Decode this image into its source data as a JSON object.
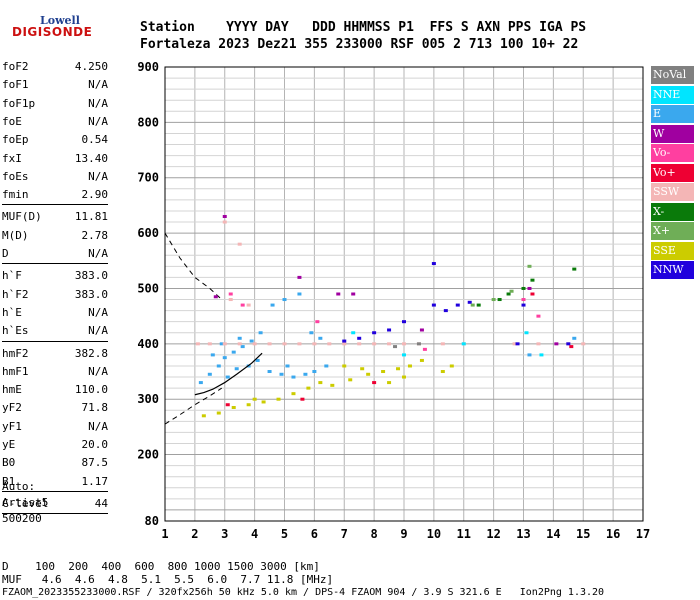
{
  "logo": {
    "brand": "Lowell",
    "product": "DIGISONDE"
  },
  "header": {
    "line1": "Station    YYYY DAY   DDD HHMMSS P1  FFS S AXN PPS IGA PS",
    "line2": "Fortaleza 2023 Dez21 355 233000 RSF 005 2 713 100 10+ 22"
  },
  "params": [
    {
      "name": "foF2",
      "value": "4.250"
    },
    {
      "name": "foF1",
      "value": "N/A"
    },
    {
      "name": "foF1p",
      "value": "N/A"
    },
    {
      "name": "foE",
      "value": "N/A"
    },
    {
      "name": "foEp",
      "value": "0.54"
    },
    {
      "name": "fxI",
      "value": "13.40"
    },
    {
      "name": "foEs",
      "value": "N/A"
    },
    {
      "name": "fmin",
      "value": "2.90"
    },
    {
      "name": "MUF(D)",
      "value": "11.81"
    },
    {
      "name": "M(D)",
      "value": "2.78"
    },
    {
      "name": "D",
      "value": "N/A"
    },
    {
      "name": "h`F",
      "value": "383.0"
    },
    {
      "name": "h`F2",
      "value": "383.0"
    },
    {
      "name": "h`E",
      "value": "N/A"
    },
    {
      "name": "h`Es",
      "value": "N/A"
    },
    {
      "name": "hmF2",
      "value": "382.8"
    },
    {
      "name": "hmF1",
      "value": "N/A"
    },
    {
      "name": "hmE",
      "value": "110.0"
    },
    {
      "name": "yF2",
      "value": "71.8"
    },
    {
      "name": "yF1",
      "value": "N/A"
    },
    {
      "name": "yE",
      "value": "20.0"
    },
    {
      "name": "B0",
      "value": "87.5"
    },
    {
      "name": "B1",
      "value": "1.17"
    },
    {
      "name": "C-level",
      "value": "44"
    }
  ],
  "autoscaling": {
    "line1": "Auto:",
    "line2": "Artist5",
    "line3": "500200"
  },
  "legend": [
    {
      "label": "NoVal",
      "color": "#808080"
    },
    {
      "label": "NNE",
      "color": "#00e5ff"
    },
    {
      "label": "E",
      "color": "#3aa8ee"
    },
    {
      "label": "W",
      "color": "#a000a0"
    },
    {
      "label": "Vo-",
      "color": "#ff3fa0"
    },
    {
      "label": "Vo+",
      "color": "#ee0033"
    },
    {
      "label": "SSW",
      "color": "#f4b6b6"
    },
    {
      "label": "X-",
      "color": "#0a7a0a"
    },
    {
      "label": "X+",
      "color": "#6fae57"
    },
    {
      "label": "SSE",
      "color": "#cccc00"
    },
    {
      "label": "NNW",
      "color": "#2000dd"
    }
  ],
  "bottom": {
    "d_row": "D    100  200  400  600  800 1000 1500 3000 [km]",
    "muf_row": "MUF   4.6  4.6  4.8  5.1  5.5  6.0  7.7 11.8 [MHz]",
    "footer": "FZAOM_2023355233000.RSF / 320fx256h 50 kHz 5.0 km / DPS-4 FZAOM 904 / 3.9 S 321.6 E   Ion2Png 1.3.20"
  },
  "chart_data": {
    "type": "scatter",
    "title": "",
    "xlabel": "",
    "ylabel": "",
    "xlim": [
      1,
      17
    ],
    "ylim": [
      80,
      900
    ],
    "x_ticks": [
      "1",
      "2",
      "3",
      "4",
      "5",
      "6",
      "7",
      "8",
      "9",
      "10",
      "11",
      "12",
      "13",
      "14",
      "15",
      "16",
      "17"
    ],
    "y_ticks": [
      "80",
      "200",
      "300",
      "400",
      "500",
      "600",
      "700",
      "800",
      "900"
    ],
    "grid": true,
    "legend_position": "right",
    "series": [
      {
        "name": "E",
        "color": "#3aa8ee",
        "points": [
          [
            2.2,
            330
          ],
          [
            2.5,
            345
          ],
          [
            2.8,
            360
          ],
          [
            3.0,
            375
          ],
          [
            3.3,
            385
          ],
          [
            3.6,
            395
          ],
          [
            3.9,
            405
          ],
          [
            4.2,
            420
          ],
          [
            4.5,
            350
          ],
          [
            4.9,
            345
          ],
          [
            5.3,
            340
          ],
          [
            5.7,
            345
          ],
          [
            6.0,
            350
          ],
          [
            6.4,
            360
          ],
          [
            4.6,
            470
          ],
          [
            5.0,
            480
          ],
          [
            5.5,
            490
          ],
          [
            3.8,
            360
          ],
          [
            4.1,
            370
          ],
          [
            2.6,
            380
          ],
          [
            3.1,
            340
          ],
          [
            3.4,
            355
          ],
          [
            2.9,
            400
          ],
          [
            3.5,
            410
          ],
          [
            5.1,
            360
          ],
          [
            5.9,
            420
          ],
          [
            6.2,
            410
          ],
          [
            13.2,
            380
          ],
          [
            14.7,
            410
          ]
        ]
      },
      {
        "name": "SSE",
        "color": "#cccc00",
        "points": [
          [
            2.3,
            270
          ],
          [
            2.8,
            275
          ],
          [
            3.3,
            285
          ],
          [
            3.8,
            290
          ],
          [
            4.3,
            295
          ],
          [
            4.8,
            300
          ],
          [
            5.3,
            310
          ],
          [
            5.8,
            320
          ],
          [
            6.6,
            325
          ],
          [
            7.2,
            335
          ],
          [
            7.8,
            345
          ],
          [
            8.3,
            350
          ],
          [
            8.8,
            355
          ],
          [
            9.2,
            360
          ],
          [
            9.6,
            370
          ],
          [
            7.0,
            360
          ],
          [
            7.6,
            355
          ],
          [
            8.5,
            330
          ],
          [
            9.0,
            340
          ],
          [
            10.3,
            350
          ],
          [
            10.6,
            360
          ],
          [
            4.0,
            300
          ],
          [
            6.2,
            330
          ]
        ]
      },
      {
        "name": "SSW",
        "color": "#f4b6b6",
        "points": [
          [
            2.1,
            400
          ],
          [
            2.5,
            400
          ],
          [
            3.0,
            400
          ],
          [
            3.5,
            400
          ],
          [
            4.0,
            400
          ],
          [
            4.5,
            400
          ],
          [
            5.0,
            400
          ],
          [
            5.5,
            400
          ],
          [
            6.0,
            400
          ],
          [
            6.5,
            400
          ],
          [
            7.0,
            400
          ],
          [
            7.5,
            400
          ],
          [
            8.0,
            400
          ],
          [
            8.5,
            400
          ],
          [
            9.0,
            400
          ],
          [
            9.5,
            400
          ],
          [
            10.3,
            400
          ],
          [
            11.0,
            400
          ],
          [
            12.7,
            400
          ],
          [
            13.5,
            400
          ],
          [
            14.5,
            400
          ],
          [
            15.0,
            400
          ],
          [
            3.0,
            620
          ],
          [
            3.5,
            580
          ],
          [
            3.2,
            480
          ],
          [
            3.8,
            470
          ]
        ]
      },
      {
        "name": "NNW",
        "color": "#2000dd",
        "points": [
          [
            10.0,
            470
          ],
          [
            10.4,
            460
          ],
          [
            10.8,
            470
          ],
          [
            11.2,
            475
          ],
          [
            9.0,
            440
          ],
          [
            8.5,
            425
          ],
          [
            8.0,
            420
          ],
          [
            7.5,
            410
          ],
          [
            7.0,
            405
          ],
          [
            10.0,
            545
          ],
          [
            13.0,
            470
          ],
          [
            12.8,
            400
          ],
          [
            14.5,
            400
          ]
        ]
      },
      {
        "name": "X-",
        "color": "#0a7a0a",
        "points": [
          [
            11.5,
            470
          ],
          [
            12.2,
            480
          ],
          [
            12.5,
            490
          ],
          [
            13.0,
            500
          ],
          [
            13.3,
            515
          ],
          [
            14.7,
            535
          ]
        ]
      },
      {
        "name": "X+",
        "color": "#6fae57",
        "points": [
          [
            11.3,
            470
          ],
          [
            12.0,
            480
          ],
          [
            12.6,
            495
          ],
          [
            13.2,
            540
          ]
        ]
      },
      {
        "name": "W",
        "color": "#a000a0",
        "points": [
          [
            2.7,
            485
          ],
          [
            3.0,
            630
          ],
          [
            5.5,
            520
          ],
          [
            6.8,
            490
          ],
          [
            7.3,
            490
          ],
          [
            9.6,
            425
          ],
          [
            13.2,
            500
          ],
          [
            14.1,
            400
          ]
        ]
      },
      {
        "name": "Vo-",
        "color": "#ff3fa0",
        "points": [
          [
            3.2,
            490
          ],
          [
            3.6,
            470
          ],
          [
            6.1,
            440
          ],
          [
            13.0,
            480
          ],
          [
            13.5,
            450
          ],
          [
            9.7,
            390
          ]
        ]
      },
      {
        "name": "Vo+",
        "color": "#ee0033",
        "points": [
          [
            3.1,
            290
          ],
          [
            5.6,
            300
          ],
          [
            8.0,
            330
          ],
          [
            13.3,
            490
          ],
          [
            14.6,
            395
          ]
        ]
      },
      {
        "name": "NNE",
        "color": "#00e5ff",
        "points": [
          [
            7.3,
            420
          ],
          [
            9.0,
            380
          ],
          [
            11.0,
            400
          ],
          [
            13.1,
            420
          ],
          [
            13.6,
            380
          ]
        ]
      },
      {
        "name": "NoVal",
        "color": "#808080",
        "points": [
          [
            8.7,
            395
          ],
          [
            9.5,
            400
          ]
        ]
      }
    ],
    "profile_x": [
      4.25,
      3.9,
      3.4,
      3.0,
      2.6,
      2.3,
      2.0
    ],
    "profile_y": [
      383,
      365,
      345,
      330,
      318,
      312,
      308
    ],
    "dashed_x": [
      1.0,
      1.5,
      2.0,
      2.5,
      2.9
    ],
    "dashed_y_upper": [
      600,
      555,
      520,
      500,
      480
    ],
    "dashed_y_lower": [
      255,
      272,
      290,
      306,
      320
    ]
  }
}
